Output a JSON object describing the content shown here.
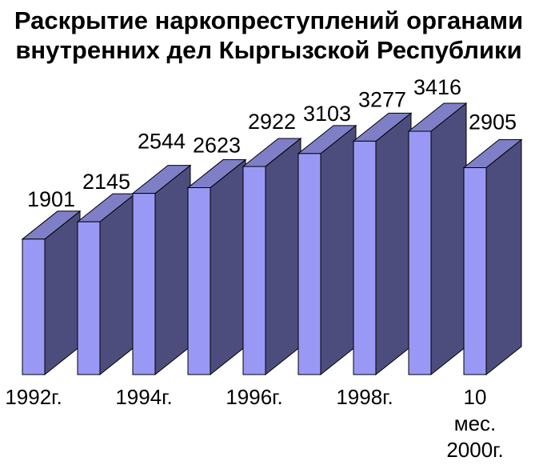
{
  "header": {
    "lines": [
      "Раскрытие наркопреступлений органами",
      "внутренних дел Кыргызской Республики"
    ]
  },
  "chart_data": {
    "type": "bar",
    "projection": "3d",
    "title": "Раскрытие наркопреступлений органами внутренних дел Кыргызской Республики",
    "values": [
      1901,
      2145,
      2544,
      2623,
      2922,
      3103,
      3277,
      3416,
      2905
    ],
    "data_labels_visible": true,
    "x_tick_labels": [
      {
        "bar_index": 0,
        "lines": [
          "1992г."
        ]
      },
      {
        "bar_index": 2,
        "lines": [
          "1994г."
        ]
      },
      {
        "bar_index": 4,
        "lines": [
          "1996г."
        ]
      },
      {
        "bar_index": 6,
        "lines": [
          "1998г."
        ]
      },
      {
        "bar_index": 8,
        "lines": [
          "10",
          "мес.",
          "2000г."
        ]
      }
    ],
    "value_axis": {
      "visible": false,
      "min": 0
    },
    "category_axis_line_visible": false,
    "legend": "none",
    "gridlines": false,
    "colors": {
      "bar_front": "#9999F5",
      "bar_top": "#7F7FC8",
      "bar_side": "#4D4D7D",
      "outline": "#000000",
      "text": "#000000",
      "background": "#FFFFFF"
    }
  }
}
